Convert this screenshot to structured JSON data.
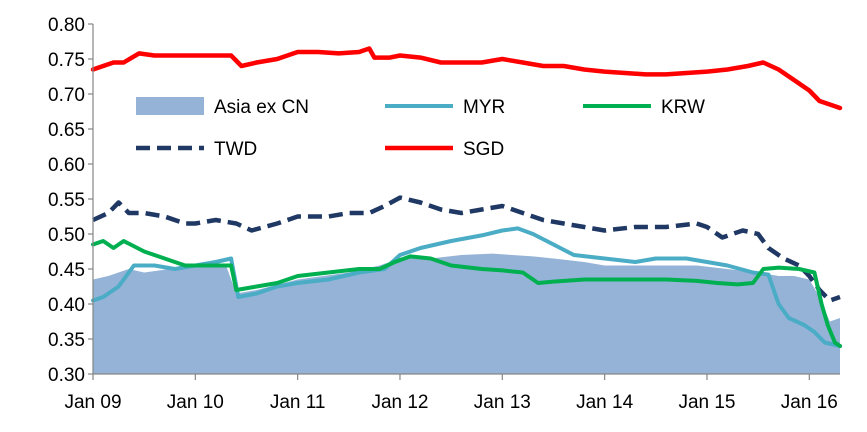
{
  "chart_data": {
    "type": "line",
    "title": "",
    "xlabel": "",
    "ylabel": "",
    "ylim": [
      0.3,
      0.8
    ],
    "yticks": [
      "0.30",
      "0.35",
      "0.40",
      "0.45",
      "0.50",
      "0.55",
      "0.60",
      "0.65",
      "0.70",
      "0.75",
      "0.80"
    ],
    "xlim": [
      2009.0,
      2016.3
    ],
    "xticks": [
      {
        "label": "Jan 09",
        "value": 2009
      },
      {
        "label": "Jan 10",
        "value": 2010
      },
      {
        "label": "Jan 11",
        "value": 2011
      },
      {
        "label": "Jan 12",
        "value": 2012
      },
      {
        "label": "Jan 13",
        "value": 2013
      },
      {
        "label": "Jan 14",
        "value": 2014
      },
      {
        "label": "Jan 15",
        "value": 2015
      },
      {
        "label": "Jan 16",
        "value": 2016
      }
    ],
    "grid": false,
    "legend": {
      "placement": "inside-upper",
      "entries": [
        {
          "key": "asia",
          "label": "Asia ex CN"
        },
        {
          "key": "myr",
          "label": "MYR"
        },
        {
          "key": "krw",
          "label": "KRW"
        },
        {
          "key": "twd",
          "label": "TWD"
        },
        {
          "key": "sgd",
          "label": "SGD"
        }
      ]
    },
    "series": [
      {
        "key": "asia",
        "name": "Asia ex CN",
        "style": "area",
        "color": "#95B3D7",
        "x": [
          2009.0,
          2009.15,
          2009.35,
          2009.5,
          2009.75,
          2010.0,
          2010.3,
          2010.4,
          2010.6,
          2011.0,
          2011.5,
          2011.8,
          2012.0,
          2012.3,
          2012.6,
          2012.9,
          2013.1,
          2013.3,
          2013.5,
          2013.8,
          2014.0,
          2014.3,
          2014.6,
          2014.9,
          2015.2,
          2015.5,
          2015.7,
          2015.85,
          2016.0,
          2016.1,
          2016.2,
          2016.3
        ],
        "y": [
          0.435,
          0.44,
          0.45,
          0.445,
          0.45,
          0.455,
          0.455,
          0.415,
          0.42,
          0.435,
          0.445,
          0.455,
          0.465,
          0.465,
          0.47,
          0.472,
          0.47,
          0.468,
          0.465,
          0.46,
          0.455,
          0.455,
          0.455,
          0.455,
          0.45,
          0.445,
          0.44,
          0.44,
          0.435,
          0.41,
          0.375,
          0.38
        ]
      },
      {
        "key": "myr",
        "name": "MYR",
        "style": "line",
        "color": "#4BACC6",
        "width": 4,
        "x": [
          2009.0,
          2009.1,
          2009.25,
          2009.4,
          2009.6,
          2009.8,
          2010.0,
          2010.2,
          2010.35,
          2010.42,
          2010.6,
          2010.8,
          2011.0,
          2011.3,
          2011.6,
          2011.85,
          2012.0,
          2012.2,
          2012.5,
          2012.8,
          2013.0,
          2013.15,
          2013.3,
          2013.5,
          2013.7,
          2014.0,
          2014.3,
          2014.5,
          2014.8,
          2015.0,
          2015.2,
          2015.45,
          2015.6,
          2015.7,
          2015.8,
          2015.95,
          2016.05,
          2016.15,
          2016.3
        ],
        "y": [
          0.405,
          0.41,
          0.425,
          0.455,
          0.455,
          0.45,
          0.455,
          0.46,
          0.465,
          0.41,
          0.415,
          0.425,
          0.43,
          0.435,
          0.445,
          0.45,
          0.47,
          0.48,
          0.49,
          0.498,
          0.505,
          0.508,
          0.5,
          0.485,
          0.47,
          0.465,
          0.46,
          0.465,
          0.465,
          0.46,
          0.455,
          0.445,
          0.442,
          0.4,
          0.38,
          0.37,
          0.36,
          0.345,
          0.34
        ]
      },
      {
        "key": "krw",
        "name": "KRW",
        "style": "line",
        "color": "#00B050",
        "width": 4,
        "x": [
          2009.0,
          2009.1,
          2009.2,
          2009.3,
          2009.5,
          2009.7,
          2009.9,
          2010.1,
          2010.35,
          2010.4,
          2010.6,
          2010.8,
          2011.0,
          2011.3,
          2011.6,
          2011.8,
          2011.95,
          2012.1,
          2012.3,
          2012.5,
          2012.8,
          2013.0,
          2013.2,
          2013.35,
          2013.5,
          2013.8,
          2014.0,
          2014.3,
          2014.6,
          2014.9,
          2015.1,
          2015.3,
          2015.45,
          2015.55,
          2015.7,
          2015.9,
          2016.05,
          2016.12,
          2016.18,
          2016.25,
          2016.3
        ],
        "y": [
          0.485,
          0.49,
          0.48,
          0.49,
          0.475,
          0.465,
          0.455,
          0.455,
          0.455,
          0.42,
          0.425,
          0.43,
          0.44,
          0.445,
          0.45,
          0.45,
          0.46,
          0.468,
          0.465,
          0.455,
          0.45,
          0.448,
          0.445,
          0.43,
          0.432,
          0.435,
          0.435,
          0.435,
          0.435,
          0.433,
          0.43,
          0.428,
          0.43,
          0.45,
          0.452,
          0.45,
          0.445,
          0.4,
          0.37,
          0.345,
          0.34
        ]
      },
      {
        "key": "twd",
        "name": "TWD",
        "style": "dashed",
        "color": "#1F3864",
        "width": 4.5,
        "x": [
          2009.0,
          2009.15,
          2009.25,
          2009.35,
          2009.5,
          2009.7,
          2009.9,
          2010.0,
          2010.2,
          2010.4,
          2010.55,
          2010.8,
          2011.0,
          2011.3,
          2011.5,
          2011.7,
          2011.85,
          2012.0,
          2012.2,
          2012.4,
          2012.6,
          2012.8,
          2013.0,
          2013.2,
          2013.4,
          2013.6,
          2013.8,
          2014.0,
          2014.3,
          2014.6,
          2014.9,
          2015.0,
          2015.15,
          2015.35,
          2015.5,
          2015.6,
          2015.75,
          2015.9,
          2016.0,
          2016.1,
          2016.2,
          2016.3
        ],
        "y": [
          0.52,
          0.53,
          0.545,
          0.53,
          0.53,
          0.525,
          0.515,
          0.515,
          0.52,
          0.515,
          0.505,
          0.515,
          0.525,
          0.525,
          0.53,
          0.53,
          0.54,
          0.552,
          0.545,
          0.535,
          0.53,
          0.535,
          0.54,
          0.53,
          0.52,
          0.515,
          0.51,
          0.505,
          0.51,
          0.51,
          0.515,
          0.51,
          0.495,
          0.505,
          0.5,
          0.48,
          0.465,
          0.455,
          0.44,
          0.42,
          0.405,
          0.41
        ]
      },
      {
        "key": "sgd",
        "name": "SGD",
        "style": "line",
        "color": "#FF0000",
        "width": 4.5,
        "x": [
          2009.0,
          2009.1,
          2009.2,
          2009.3,
          2009.45,
          2009.6,
          2009.8,
          2010.0,
          2010.2,
          2010.35,
          2010.45,
          2010.6,
          2010.8,
          2011.0,
          2011.2,
          2011.4,
          2011.6,
          2011.7,
          2011.75,
          2011.9,
          2012.0,
          2012.2,
          2012.4,
          2012.6,
          2012.8,
          2013.0,
          2013.2,
          2013.4,
          2013.6,
          2013.8,
          2014.0,
          2014.2,
          2014.4,
          2014.6,
          2014.8,
          2015.0,
          2015.2,
          2015.4,
          2015.55,
          2015.7,
          2015.85,
          2016.0,
          2016.1,
          2016.2,
          2016.3
        ],
        "y": [
          0.735,
          0.74,
          0.745,
          0.745,
          0.758,
          0.755,
          0.755,
          0.755,
          0.755,
          0.755,
          0.74,
          0.745,
          0.75,
          0.76,
          0.76,
          0.758,
          0.76,
          0.765,
          0.752,
          0.752,
          0.755,
          0.752,
          0.745,
          0.745,
          0.745,
          0.75,
          0.745,
          0.74,
          0.74,
          0.735,
          0.732,
          0.73,
          0.728,
          0.728,
          0.73,
          0.732,
          0.735,
          0.74,
          0.745,
          0.735,
          0.72,
          0.705,
          0.69,
          0.685,
          0.68
        ]
      }
    ]
  }
}
